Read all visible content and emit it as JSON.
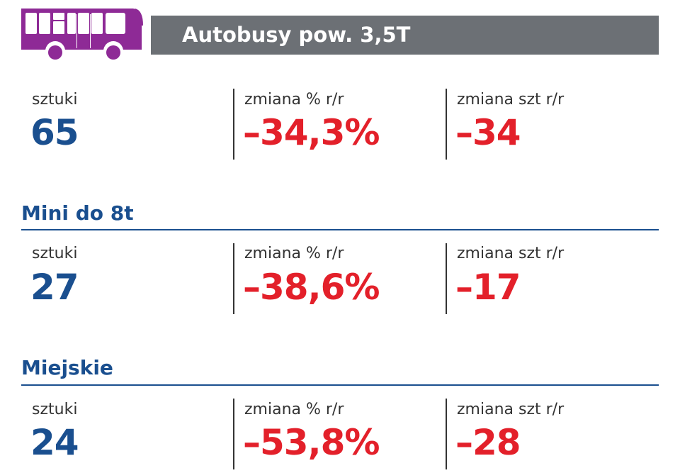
{
  "header": {
    "title": "Autobusy pow. 3,5T",
    "icon": "bus-icon",
    "icon_color": "#8e2a96"
  },
  "colors": {
    "blue": "#1a4f8f",
    "red": "#e3202a",
    "header_bg": "#6c7075"
  },
  "sections": [
    {
      "title": "",
      "units_label": "sztuki",
      "units": "65",
      "pct_label": "zmiana % r/r",
      "pct": "–34,3%",
      "abs_label": "zmiana szt r/r",
      "abs": "–34"
    },
    {
      "title": "Mini do 8t",
      "units_label": "sztuki",
      "units": "27",
      "pct_label": "zmiana % r/r",
      "pct": "–38,6%",
      "abs_label": "zmiana szt r/r",
      "abs": "–17"
    },
    {
      "title": "Miejskie",
      "units_label": "sztuki",
      "units": "24",
      "pct_label": "zmiana % r/r",
      "pct": "–53,8%",
      "abs_label": "zmiana szt r/r",
      "abs": "–28"
    }
  ]
}
